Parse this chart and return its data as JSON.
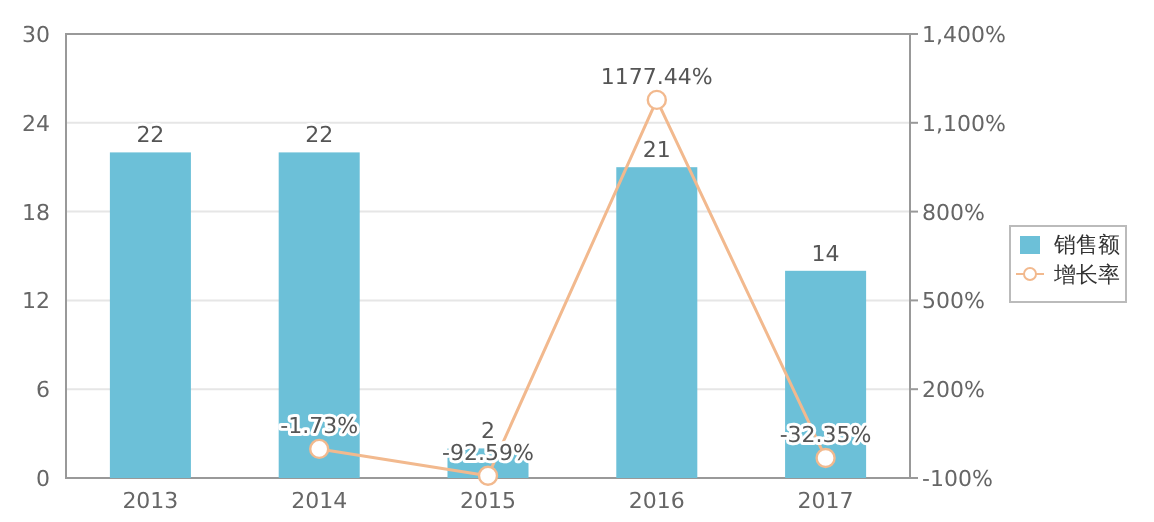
{
  "chart_data": {
    "type": "bar",
    "categories": [
      "2013",
      "2014",
      "2015",
      "2016",
      "2017"
    ],
    "series": [
      {
        "name": "销售额",
        "color": "#6cc0d8",
        "values": [
          22,
          22,
          2,
          21,
          14
        ],
        "value_labels": [
          "22",
          "22",
          "2",
          "21",
          "14"
        ]
      },
      {
        "name": "增长率",
        "type": "line",
        "axis": "y2",
        "color": "#f2b98e",
        "marker": "circle",
        "values": [
          null,
          -1.73,
          -92.59,
          1177.44,
          -32.35
        ],
        "value_labels": [
          null,
          "-1.73%",
          "-92.59%",
          "1177.44%",
          "-32.35%"
        ]
      }
    ],
    "ylim": [
      0,
      30
    ],
    "yticks": [
      0,
      6,
      12,
      18,
      24,
      30
    ],
    "y2lim": [
      -100,
      1400
    ],
    "y2ticks": [
      {
        "value": -100,
        "label": "-100%"
      },
      {
        "value": 200,
        "label": "200%"
      },
      {
        "value": 500,
        "label": "500%"
      },
      {
        "value": 800,
        "label": "800%"
      },
      {
        "value": 1100,
        "label": "1,100%"
      },
      {
        "value": 1400,
        "label": "1,400%"
      }
    ],
    "grid": "y",
    "legend": "right"
  }
}
